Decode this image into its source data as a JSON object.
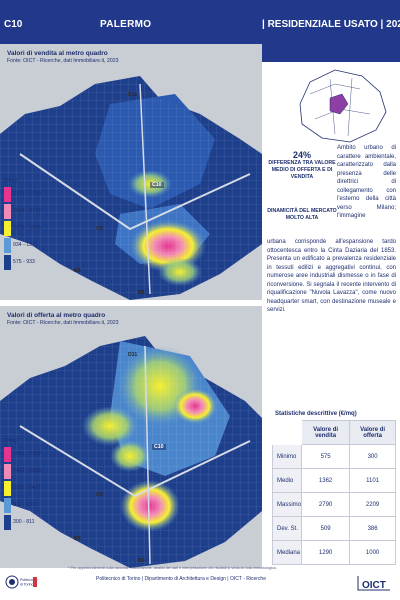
{
  "header": {
    "code": "C10",
    "city": "PALERMO",
    "category": "| RESIDENZIALE USATO | 2023"
  },
  "map_sale": {
    "title": "Valori di vendita al metro quadro",
    "source": "Fonte: OICT - Ricerche, dati Immobiliare.it, 2023",
    "unit": "(€/mq)",
    "legend": [
      {
        "range": "2173 - 2790",
        "color": "#e7348f"
      },
      {
        "range": "1626 - 2172",
        "color": "#f18ab7"
      },
      {
        "range": "1273 - 1626",
        "color": "#f6ef2d"
      },
      {
        "range": "934 - 1272",
        "color": "#5b9ad6"
      },
      {
        "range": "575 - 933",
        "color": "#1e3f8c"
      }
    ],
    "labels": {
      "d11": "D11",
      "c9": "C9",
      "c10": "C10",
      "b5": "B5",
      "b6": "B6"
    }
  },
  "map_offer": {
    "title": "Valori di offerta al metro quadro",
    "source": "Fonte: OICT - Ricerche, dati Immobiliare.it, 2023",
    "unit": "(€/mq)",
    "legend": [
      {
        "range": "1801 - 2209",
        "color": "#e7348f"
      },
      {
        "range": "1431 - 1800",
        "color": "#f18ab7"
      },
      {
        "range": "1105 - 1430",
        "color": "#f6ef2d"
      },
      {
        "range": "811 - 1104",
        "color": "#5b9ad6"
      },
      {
        "range": "300 - 811",
        "color": "#1e3f8c"
      }
    ],
    "labels": {
      "d11": "D11",
      "c9": "C9",
      "c10": "C10",
      "b5": "B5",
      "b6": "B6"
    }
  },
  "summary": {
    "percent": "24%",
    "percent_label": "DIFFERENZA TRA VALORE MEDIO DI OFFERTA E DI VENDITA",
    "dynamic": "DINAMICITÀ DEL MERCATO MOLTO ALTA",
    "desc_top": "Ambito urbano di carattere ambientale, caratterizzato dalla presenza delle direttrici di collegamento con l'esterno della città verso Milano; l'immagine",
    "desc_bottom": "urbana corrisponde all'espansione tardo ottocentesca entro la Cinta Daziaria del 1853. Presenta un edificato a prevalenza residenziale in tessuti edilizi e aggregativi continui, con numerose aree industriali dismesse o in fase di riconversione. Si segnala il recente intervento di riqualificazione \"Nuvola Lavazza\", come nuovo headquarter smart, con destinazione museale e servizi."
  },
  "stats": {
    "title": "Statistiche descrittive (€/mq)",
    "columns": [
      "Valore di vendita",
      "Valore di offerta"
    ],
    "rows": [
      {
        "label": "Minimo",
        "sale": "575",
        "offer": "300"
      },
      {
        "label": "Medio",
        "sale": "1362",
        "offer": "1101"
      },
      {
        "label": "Massimo",
        "sale": "2790",
        "offer": "2209"
      },
      {
        "label": "Dev. St.",
        "sale": "509",
        "offer": "386"
      },
      {
        "label": "Mediana",
        "sale": "1290",
        "offer": "1000"
      }
    ]
  },
  "footer": {
    "note": "* Per approfondimenti sulla raccolta, elaborazione, analisi dei dati e interpretazione dei risultati si veda la nota metodologica.",
    "credits": "Politecnico di Torino | Dipartimento di Architettura e Design | OICT - Ricerche",
    "logo_left": "Politecnico di Torino",
    "logo_right": "OICT"
  },
  "colors": {
    "brand": "#22398b",
    "heat_high": "#e7348f",
    "heat_mid": "#f6ef2d",
    "base": "#1e3f8c"
  }
}
